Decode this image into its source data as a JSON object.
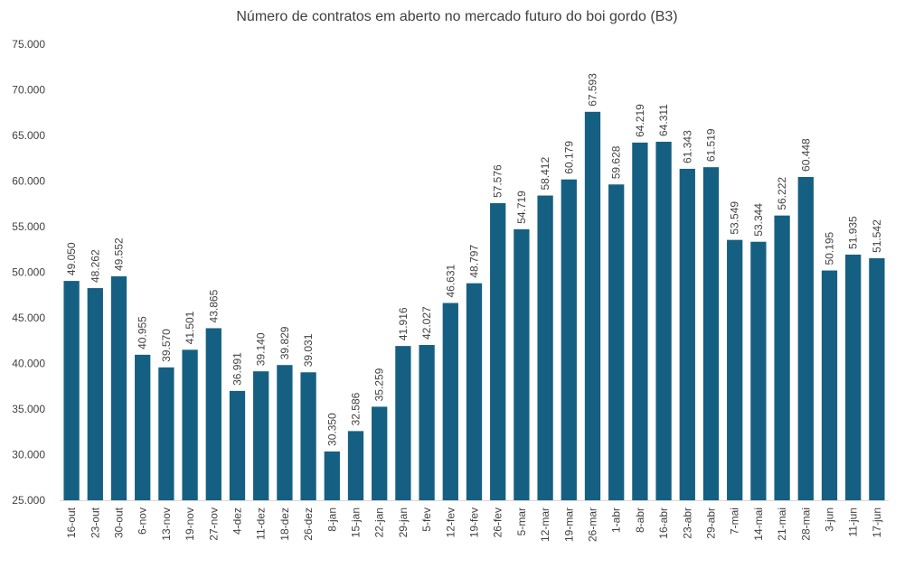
{
  "chart_data": {
    "type": "bar",
    "title": "Número de contratos em aberto no mercado futuro do boi gordo (B3)",
    "xlabel": "",
    "ylabel": "",
    "ylim": [
      25000,
      75000
    ],
    "y_ticks": [
      25000,
      30000,
      35000,
      40000,
      45000,
      50000,
      55000,
      60000,
      65000,
      70000,
      75000
    ],
    "y_tick_labels": [
      "25.000",
      "30.000",
      "35.000",
      "40.000",
      "45.000",
      "50.000",
      "55.000",
      "60.000",
      "65.000",
      "70.000",
      "75.000"
    ],
    "grid": false,
    "legend": "none",
    "bar_color": "#156082",
    "categories": [
      "16-out",
      "23-out",
      "30-out",
      "6-nov",
      "13-nov",
      "19-nov",
      "27-nov",
      "4-dez",
      "11-dez",
      "18-dez",
      "26-dez",
      "8-jan",
      "15-jan",
      "22-jan",
      "29-jan",
      "5-fev",
      "12-fev",
      "19-fev",
      "26-fev",
      "5-mar",
      "12-mar",
      "19-mar",
      "26-mar",
      "1-abr",
      "8-abr",
      "16-abr",
      "23-abr",
      "29-abr",
      "7-mai",
      "14-mai",
      "21-mai",
      "28-mai",
      "3-jun",
      "11-jun",
      "17-jun"
    ],
    "values": [
      49050,
      48262,
      49552,
      40955,
      39570,
      41501,
      43865,
      36991,
      39140,
      39829,
      39031,
      30350,
      32586,
      35259,
      41916,
      42027,
      46631,
      48797,
      57576,
      54719,
      58412,
      60179,
      67593,
      59628,
      64219,
      64311,
      61343,
      61519,
      53549,
      53344,
      56222,
      60448,
      50195,
      51935,
      51542
    ],
    "value_labels": [
      "49.050",
      "48.262",
      "49.552",
      "40.955",
      "39.570",
      "41.501",
      "43.865",
      "36.991",
      "39.140",
      "39.829",
      "39.031",
      "30.350",
      "32.586",
      "35.259",
      "41.916",
      "42.027",
      "46.631",
      "48.797",
      "57.576",
      "54.719",
      "58.412",
      "60.179",
      "67.593",
      "59.628",
      "64.219",
      "64.311",
      "61.343",
      "61.519",
      "53.549",
      "53.344",
      "56.222",
      "60.448",
      "50.195",
      "51.935",
      "51.542"
    ]
  }
}
